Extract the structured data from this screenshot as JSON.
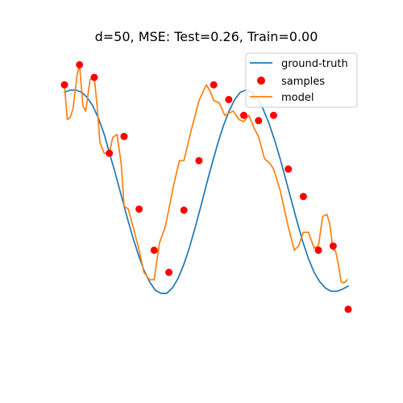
{
  "chart_data": {
    "type": "line",
    "title": "d=50, MSE: Test=0.26, Train=0.00",
    "xlabel": "",
    "ylabel": "",
    "xlim": [
      0,
      1
    ],
    "ylim": [
      -1.45,
      1.35
    ],
    "axes_visible": false,
    "grid": false,
    "legend": {
      "placement": "top-right",
      "entries": [
        "ground-truth",
        "samples",
        "model"
      ]
    },
    "series": [
      {
        "name": "ground-truth",
        "kind": "line",
        "color": "#1f77b4",
        "x": [
          0,
          0.02,
          0.04,
          0.06,
          0.08,
          0.1,
          0.12,
          0.14,
          0.16,
          0.18,
          0.2,
          0.22,
          0.24,
          0.26,
          0.28,
          0.3,
          0.32,
          0.34,
          0.36,
          0.38,
          0.4,
          0.42,
          0.44,
          0.46,
          0.48,
          0.5,
          0.52,
          0.54,
          0.56,
          0.58,
          0.6,
          0.62,
          0.64,
          0.66,
          0.68,
          0.7,
          0.72,
          0.74,
          0.76,
          0.78,
          0.8,
          0.82,
          0.84,
          0.86,
          0.88,
          0.9,
          0.92,
          0.94,
          0.96,
          0.98,
          1.0
        ],
        "y": [
          0.98,
          1.0,
          1.0,
          0.98,
          0.93,
          0.85,
          0.73,
          0.58,
          0.39,
          0.2,
          0.0,
          -0.2,
          -0.39,
          -0.56,
          -0.71,
          -0.82,
          -0.9,
          -0.93,
          -0.93,
          -0.88,
          -0.79,
          -0.66,
          -0.5,
          -0.31,
          -0.11,
          0.1,
          0.3,
          0.49,
          0.66,
          0.8,
          0.91,
          0.98,
          1.0,
          0.98,
          0.92,
          0.82,
          0.69,
          0.53,
          0.35,
          0.15,
          -0.05,
          -0.25,
          -0.44,
          -0.6,
          -0.73,
          -0.82,
          -0.88,
          -0.91,
          -0.91,
          -0.89,
          -0.86
        ]
      },
      {
        "name": "samples",
        "kind": "scatter",
        "color": "#ff0000",
        "x": [
          0.0,
          0.053,
          0.105,
          0.158,
          0.21,
          0.263,
          0.316,
          0.368,
          0.421,
          0.474,
          0.526,
          0.579,
          0.632,
          0.684,
          0.737,
          0.789,
          0.842,
          0.895,
          0.947,
          1.0
        ],
        "y": [
          1.05,
          1.24,
          1.12,
          0.4,
          0.56,
          -0.13,
          -0.52,
          -0.73,
          -0.14,
          0.33,
          1.05,
          0.91,
          0.76,
          0.71,
          0.76,
          0.25,
          -0.01,
          -0.52,
          -0.48,
          -1.08
        ]
      },
      {
        "name": "model",
        "kind": "line",
        "color": "#ff7f0e",
        "x": [
          0.0,
          0.01,
          0.02,
          0.03,
          0.045,
          0.053,
          0.065,
          0.075,
          0.09,
          0.105,
          0.115,
          0.125,
          0.14,
          0.158,
          0.17,
          0.185,
          0.2,
          0.21,
          0.225,
          0.245,
          0.263,
          0.28,
          0.3,
          0.316,
          0.335,
          0.355,
          0.368,
          0.385,
          0.405,
          0.421,
          0.445,
          0.474,
          0.5,
          0.515,
          0.526,
          0.545,
          0.565,
          0.579,
          0.595,
          0.615,
          0.632,
          0.65,
          0.67,
          0.684,
          0.705,
          0.725,
          0.737,
          0.76,
          0.789,
          0.81,
          0.825,
          0.842,
          0.86,
          0.88,
          0.895,
          0.91,
          0.925,
          0.935,
          0.947,
          0.955,
          0.965,
          0.975,
          0.985,
          0.99,
          0.997
        ],
        "y": [
          1.05,
          0.72,
          0.74,
          0.82,
          1.15,
          1.24,
          0.85,
          0.8,
          1.1,
          1.12,
          0.85,
          0.5,
          0.4,
          0.4,
          0.55,
          0.58,
          0.3,
          -0.1,
          -0.13,
          -0.33,
          -0.52,
          -0.73,
          -0.8,
          -0.8,
          -0.45,
          -0.3,
          -0.13,
          0.1,
          0.33,
          0.33,
          0.6,
          0.9,
          1.05,
          0.98,
          0.9,
          0.88,
          0.76,
          0.78,
          0.8,
          0.72,
          0.7,
          0.76,
          0.63,
          0.56,
          0.35,
          0.3,
          0.25,
          0.05,
          -0.3,
          -0.52,
          -0.48,
          -0.35,
          -0.35,
          -0.5,
          -0.48,
          -0.2,
          -0.18,
          -0.27,
          -0.52,
          -0.52,
          -0.65,
          -0.82,
          -0.83,
          -0.82,
          -0.8
        ]
      }
    ]
  }
}
